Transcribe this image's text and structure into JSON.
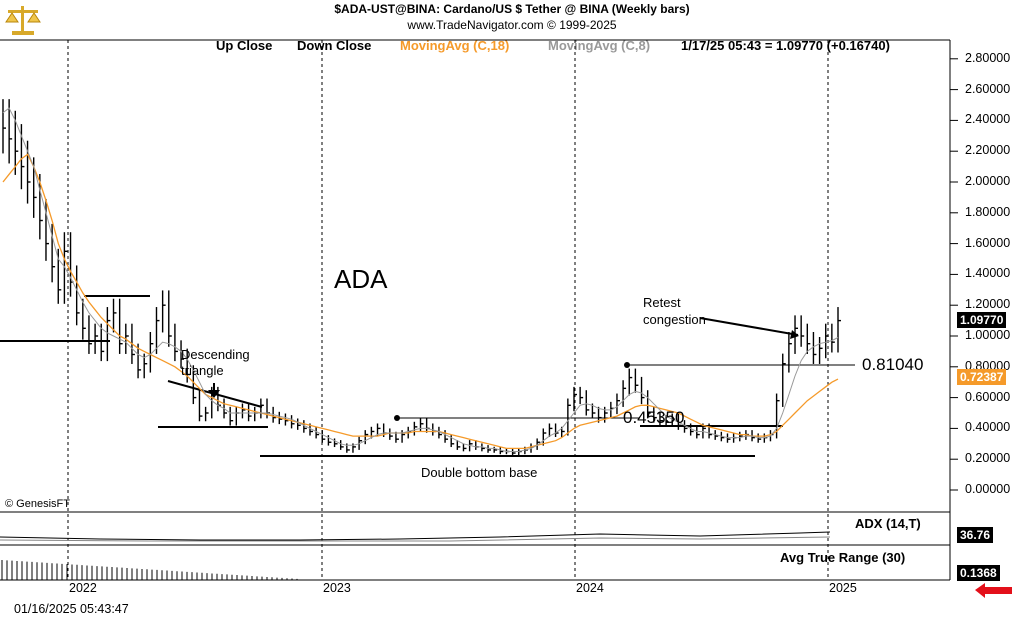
{
  "header": {
    "title": "$ADA-UST@BINA:  Cardano/US $ Tether @ BINA  (Weekly bars)",
    "subtitle": "www.TradeNavigator.com © 1999-2025"
  },
  "legend": {
    "up_close": "Up Close",
    "down_close": "Down Close",
    "ma18": "MovingAvg (C,18)",
    "ma8": "MovingAvg (C,8)",
    "last": "1/17/25 05:43 = 1.09770 (+0.16740)"
  },
  "colors": {
    "ma18": "#f59a2a",
    "ma8": "#999999",
    "bars": "#000000",
    "price_tag": "#000000",
    "ma_tag": "#f59a2a",
    "arrow": "#e3101a"
  },
  "annotations": {
    "ticker_label": "ADA",
    "descending_triangle": "Descending\ntriangle",
    "double_bottom": "Double bottom base",
    "retest": "Retest\ncongestion",
    "level_high": "0.81040",
    "level_low": "0.45350",
    "copyright": "© GenesisFT",
    "timestamp": "01/16/2025 05:43:47"
  },
  "price_tags": {
    "last": "1.09770",
    "ma": "0.72387"
  },
  "indicators": {
    "adx_label": "ADX (14,T)",
    "adx_value": "36.76",
    "atr_label": "Avg True Range (30)",
    "atr_value": "0.1368"
  },
  "chart_data": {
    "type": "bar",
    "title": "$ADA-UST@BINA:  Cardano/US $ Tether @ BINA  (Weekly bars)",
    "y_axis": {
      "ticks": [
        "2.80000",
        "2.60000",
        "2.40000",
        "2.20000",
        "2.00000",
        "1.80000",
        "1.60000",
        "1.40000",
        "1.20000",
        "1.00000",
        "0.80000",
        "0.60000",
        "0.40000",
        "0.20000",
        "0.00000"
      ],
      "ylim": [
        0,
        2.9
      ]
    },
    "x_axis": {
      "ticks": [
        "2022",
        "2023",
        "2024",
        "2025"
      ]
    },
    "closes": [
      2.35,
      2.28,
      2.2,
      2.1,
      2.0,
      1.9,
      1.75,
      1.6,
      1.45,
      1.3,
      1.55,
      1.35,
      1.15,
      1.05,
      0.95,
      1.0,
      0.9,
      1.1,
      1.15,
      0.95,
      1.0,
      0.88,
      0.78,
      0.82,
      0.95,
      1.1,
      1.2,
      1.0,
      0.9,
      0.85,
      0.75,
      0.6,
      0.48,
      0.5,
      0.62,
      0.55,
      0.5,
      0.45,
      0.5,
      0.52,
      0.48,
      0.5,
      0.55,
      0.5,
      0.47,
      0.46,
      0.45,
      0.43,
      0.42,
      0.4,
      0.38,
      0.36,
      0.33,
      0.31,
      0.3,
      0.28,
      0.26,
      0.28,
      0.32,
      0.36,
      0.38,
      0.4,
      0.37,
      0.35,
      0.33,
      0.36,
      0.38,
      0.41,
      0.43,
      0.4,
      0.38,
      0.36,
      0.33,
      0.3,
      0.28,
      0.27,
      0.3,
      0.28,
      0.27,
      0.26,
      0.26,
      0.25,
      0.25,
      0.24,
      0.25,
      0.26,
      0.28,
      0.31,
      0.37,
      0.4,
      0.37,
      0.38,
      0.55,
      0.62,
      0.6,
      0.52,
      0.5,
      0.47,
      0.5,
      0.53,
      0.58,
      0.66,
      0.73,
      0.68,
      0.6,
      0.5,
      0.47,
      0.45,
      0.44,
      0.46,
      0.42,
      0.4,
      0.38,
      0.36,
      0.4,
      0.36,
      0.35,
      0.34,
      0.33,
      0.34,
      0.35,
      0.36,
      0.34,
      0.33,
      0.34,
      0.36,
      0.58,
      0.82,
      0.95,
      1.05,
      1.0,
      0.95,
      0.88,
      0.92,
      1.0,
      0.96,
      1.1
    ],
    "ma18": [
      2.0,
      2.05,
      2.1,
      2.15,
      2.18,
      2.1,
      2.0,
      1.88,
      1.75,
      1.6,
      1.5,
      1.42,
      1.35,
      1.28,
      1.22,
      1.17,
      1.12,
      1.08,
      1.04,
      1.0,
      0.98,
      0.95,
      0.92,
      0.9,
      0.88,
      0.86,
      0.84,
      0.82,
      0.8,
      0.77,
      0.74,
      0.7,
      0.66,
      0.62,
      0.6,
      0.58,
      0.56,
      0.55,
      0.54,
      0.53,
      0.52,
      0.51,
      0.5,
      0.49,
      0.48,
      0.47,
      0.46,
      0.45,
      0.44,
      0.43,
      0.42,
      0.41,
      0.4,
      0.39,
      0.38,
      0.37,
      0.36,
      0.35,
      0.35,
      0.35,
      0.35,
      0.35,
      0.36,
      0.37,
      0.37,
      0.37,
      0.37,
      0.38,
      0.38,
      0.38,
      0.38,
      0.38,
      0.37,
      0.36,
      0.35,
      0.34,
      0.33,
      0.32,
      0.31,
      0.3,
      0.29,
      0.28,
      0.27,
      0.27,
      0.27,
      0.27,
      0.28,
      0.29,
      0.3,
      0.31,
      0.32,
      0.34,
      0.37,
      0.4,
      0.42,
      0.43,
      0.44,
      0.45,
      0.46,
      0.47,
      0.48,
      0.5,
      0.52,
      0.54,
      0.55,
      0.55,
      0.54,
      0.53,
      0.52,
      0.51,
      0.5,
      0.48,
      0.46,
      0.44,
      0.42,
      0.41,
      0.4,
      0.39,
      0.38,
      0.37,
      0.36,
      0.36,
      0.35,
      0.35,
      0.35,
      0.36,
      0.38,
      0.42,
      0.46,
      0.5,
      0.54,
      0.58,
      0.61,
      0.64,
      0.67,
      0.7,
      0.72
    ],
    "ma8": [
      2.45,
      2.48,
      2.4,
      2.3,
      2.2,
      2.1,
      1.95,
      1.8,
      1.65,
      1.5,
      1.45,
      1.38,
      1.3,
      1.22,
      1.15,
      1.1,
      1.05,
      1.02,
      1.0,
      0.98,
      0.96,
      0.92,
      0.88,
      0.86,
      0.88,
      0.92,
      0.96,
      0.95,
      0.93,
      0.9,
      0.85,
      0.78,
      0.7,
      0.62,
      0.58,
      0.55,
      0.53,
      0.5,
      0.5,
      0.5,
      0.5,
      0.5,
      0.5,
      0.5,
      0.49,
      0.48,
      0.47,
      0.46,
      0.44,
      0.42,
      0.4,
      0.38,
      0.36,
      0.34,
      0.32,
      0.3,
      0.29,
      0.29,
      0.3,
      0.32,
      0.34,
      0.36,
      0.37,
      0.37,
      0.37,
      0.37,
      0.38,
      0.39,
      0.4,
      0.4,
      0.39,
      0.38,
      0.36,
      0.34,
      0.32,
      0.3,
      0.29,
      0.28,
      0.28,
      0.27,
      0.27,
      0.26,
      0.25,
      0.25,
      0.25,
      0.26,
      0.27,
      0.29,
      0.32,
      0.35,
      0.37,
      0.4,
      0.45,
      0.5,
      0.55,
      0.56,
      0.55,
      0.53,
      0.52,
      0.52,
      0.54,
      0.58,
      0.62,
      0.64,
      0.63,
      0.6,
      0.56,
      0.52,
      0.48,
      0.46,
      0.44,
      0.42,
      0.4,
      0.38,
      0.38,
      0.37,
      0.36,
      0.35,
      0.34,
      0.34,
      0.34,
      0.35,
      0.35,
      0.34,
      0.34,
      0.35,
      0.4,
      0.5,
      0.62,
      0.74,
      0.84,
      0.9,
      0.93,
      0.95,
      0.96,
      0.97,
      0.99
    ]
  }
}
